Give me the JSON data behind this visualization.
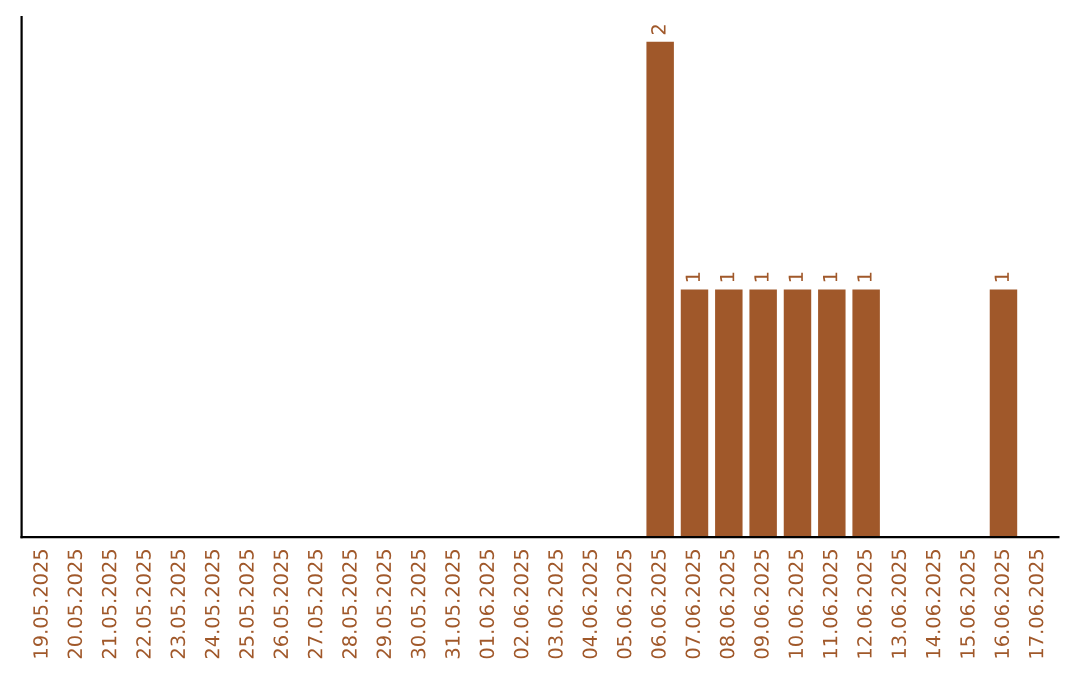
{
  "chart_data": {
    "type": "bar",
    "categories": [
      "19.05.2025",
      "20.05.2025",
      "21.05.2025",
      "22.05.2025",
      "23.05.2025",
      "24.05.2025",
      "25.05.2025",
      "26.05.2025",
      "27.05.2025",
      "28.05.2025",
      "29.05.2025",
      "30.05.2025",
      "31.05.2025",
      "01.06.2025",
      "02.06.2025",
      "03.06.2025",
      "04.06.2025",
      "05.06.2025",
      "06.06.2025",
      "07.06.2025",
      "08.06.2025",
      "09.06.2025",
      "10.06.2025",
      "11.06.2025",
      "12.06.2025",
      "13.06.2025",
      "14.06.2025",
      "15.06.2025",
      "16.06.2025",
      "17.06.2025"
    ],
    "values": [
      null,
      null,
      null,
      null,
      null,
      null,
      null,
      null,
      null,
      null,
      null,
      null,
      null,
      null,
      null,
      null,
      null,
      null,
      2,
      1,
      1,
      1,
      1,
      1,
      1,
      null,
      null,
      null,
      1,
      null
    ],
    "color": "#a0582a",
    "ylim": [
      0,
      2.1
    ],
    "data_labels": true,
    "tick_labels": "x",
    "grid": false,
    "legend": false
  }
}
